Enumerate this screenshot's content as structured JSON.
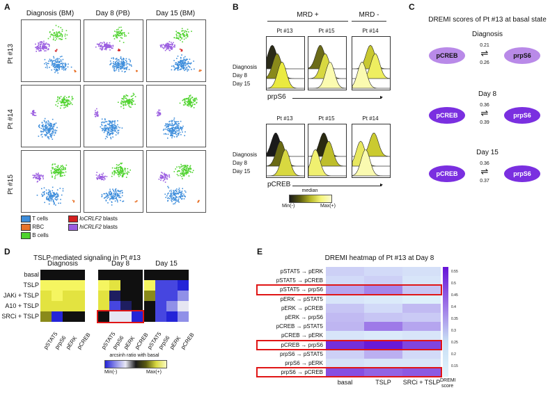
{
  "panelA": {
    "letter": "A",
    "columns": [
      "Diagnosis (BM)",
      "Day 8 (PB)",
      "Day 15 (BM)"
    ],
    "rows": [
      "Pt #13",
      "Pt #14",
      "Pt #15"
    ],
    "legend": [
      {
        "label": "T cells",
        "color": "#3d8ddb",
        "italic_prefix": ""
      },
      {
        "label": "RBC",
        "color": "#e8732a",
        "italic_prefix": ""
      },
      {
        "label": "B cells",
        "color": "#4fd32e",
        "italic_prefix": ""
      },
      {
        "label": " blasts",
        "color": "#d42020",
        "italic_prefix": "loCRLF2"
      },
      {
        "label": " blasts",
        "color": "#9a5ce0",
        "italic_prefix": "hiCRLF2"
      }
    ]
  },
  "panelB": {
    "letter": "B",
    "group_pos": "MRD +",
    "group_neg": "MRD -",
    "patients": [
      "Pt #13",
      "Pt #15",
      "Pt #14"
    ],
    "row_labels": [
      "Diagnosis",
      "Day 8",
      "Day 15"
    ],
    "marker1": "prpS6",
    "marker2": "pCREB",
    "scale_title": "median",
    "scale_min": "Min(-)",
    "scale_max": "Max(+)"
  },
  "panelC": {
    "letter": "C",
    "title": "DREMI scores of Pt #13 at basal state",
    "node_left": "pCREB",
    "node_right": "prpS6",
    "timepoints": [
      {
        "label": "Diagnosis",
        "top": "0.21",
        "bottom": "0.26",
        "color": "#b98ae8"
      },
      {
        "label": "Day 8",
        "top": "0.36",
        "bottom": "0.39",
        "color": "#7a2fe0"
      },
      {
        "label": "Day 15",
        "top": "0.36",
        "bottom": "0.37",
        "color": "#7a2fe0"
      }
    ]
  },
  "panelD": {
    "letter": "D",
    "title": "TSLP-mediated signaling in Pt #13",
    "groups": [
      "Diagnosis",
      "Day 8",
      "Day 15"
    ],
    "rows": [
      "basal",
      "TSLP",
      "JAKi + TSLP",
      "A10 + TSLP",
      "SRCi + TSLP"
    ],
    "cols": [
      "pSTAT5",
      "prpS6",
      "pERK",
      "pCREB"
    ],
    "scale_title": "arcsinh ratio with basal",
    "scale_min": "Min(-)",
    "scale_max": "Max(+)"
  },
  "panelE": {
    "letter": "E",
    "title": "DREMI heatmap of Pt #13 at Day 8",
    "rows": [
      "pSTAT5 → pERK",
      "pSTAT5 → pCREB",
      "pSTAT5 → prpS6",
      "pERK → pSTAT5",
      "pERK → pCREB",
      "pERK → prpS6",
      "pCREB → pSTAT5",
      "pCREB → pERK",
      "pCREB → prpS6",
      "prpS6 → pSTAT5",
      "prpS6 → pERK",
      "prpS6 → pCREB"
    ],
    "cols": [
      "basal",
      "TSLP",
      "SRCi + TSLP"
    ],
    "colorbar_ticks": [
      "0.55",
      "0.5",
      "0.45",
      "0.4",
      "0.35",
      "0.3",
      "0.25",
      "0.2",
      "0.15"
    ],
    "colorbar_label1": "DREMI",
    "colorbar_label2": "score"
  }
}
